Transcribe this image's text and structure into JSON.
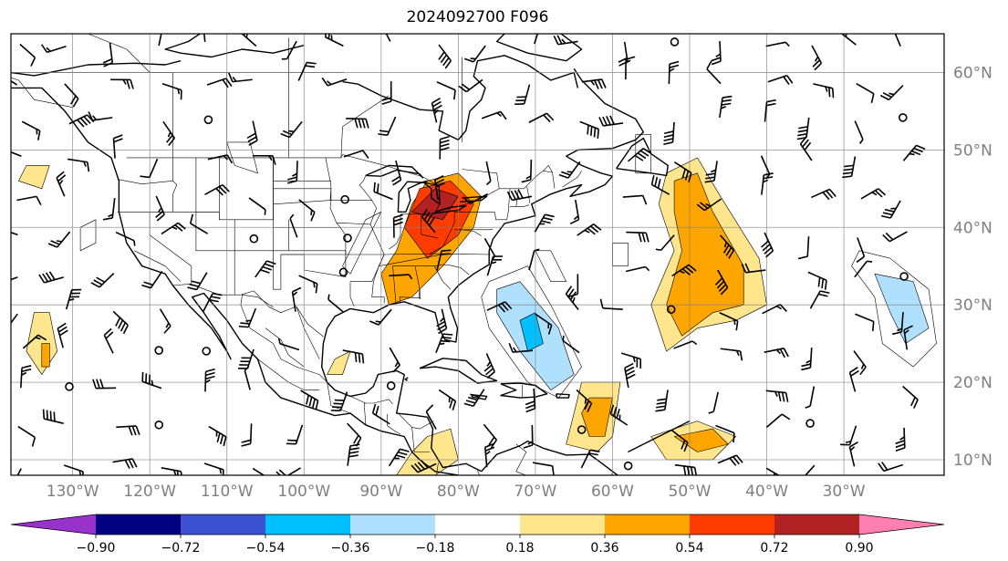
{
  "title": "2024092700 F096",
  "map": {
    "lon_range": [
      -138,
      -17
    ],
    "lat_range": [
      8,
      65
    ],
    "lat_ticks": [
      {
        "lat": 10,
        "label": "10°N"
      },
      {
        "lat": 20,
        "label": "20°N"
      },
      {
        "lat": 30,
        "label": "30°N"
      },
      {
        "lat": 40,
        "label": "40°N"
      },
      {
        "lat": 50,
        "label": "50°N"
      },
      {
        "lat": 60,
        "label": "60°N"
      }
    ],
    "lon_ticks": [
      {
        "lon": -130,
        "label": "130°W"
      },
      {
        "lon": -120,
        "label": "120°W"
      },
      {
        "lon": -110,
        "label": "110°W"
      },
      {
        "lon": -100,
        "label": "100°W"
      },
      {
        "lon": -90,
        "label": "90°W"
      },
      {
        "lon": -80,
        "label": "80°W"
      },
      {
        "lon": -70,
        "label": "70°W"
      },
      {
        "lon": -60,
        "label": "60°W"
      },
      {
        "lon": -50,
        "label": "50°W"
      },
      {
        "lon": -40,
        "label": "40°W"
      },
      {
        "lon": -30,
        "label": "30°W"
      }
    ],
    "grid": true,
    "field_regions": [
      {
        "level": 0.36,
        "points": [
          [
            -88,
            37
          ],
          [
            -86,
            43
          ],
          [
            -84,
            46
          ],
          [
            -80,
            47
          ],
          [
            -77,
            44
          ],
          [
            -78,
            40
          ],
          [
            -82,
            35
          ],
          [
            -86,
            31
          ],
          [
            -89,
            30
          ],
          [
            -90,
            34
          ]
        ]
      },
      {
        "level": 0.54,
        "points": [
          [
            -87,
            40
          ],
          [
            -85,
            45
          ],
          [
            -81,
            46
          ],
          [
            -78,
            43
          ],
          [
            -80,
            39
          ],
          [
            -84,
            36
          ]
        ]
      },
      {
        "level": 0.72,
        "points": [
          [
            -86,
            42
          ],
          [
            -83,
            45
          ],
          [
            -80,
            44
          ],
          [
            -82,
            41
          ]
        ]
      },
      {
        "level": -0.18,
        "points": [
          [
            -76,
            33
          ],
          [
            -71,
            35
          ],
          [
            -68,
            30
          ],
          [
            -64,
            22
          ],
          [
            -67,
            18
          ],
          [
            -71,
            20
          ],
          [
            -76,
            27
          ],
          [
            -77,
            31
          ]
        ]
      },
      {
        "level": -0.36,
        "points": [
          [
            -75,
            32
          ],
          [
            -72,
            33
          ],
          [
            -67,
            27
          ],
          [
            -65,
            21
          ],
          [
            -68,
            19
          ],
          [
            -72,
            24
          ],
          [
            -75,
            29
          ]
        ]
      },
      {
        "level": -0.54,
        "points": [
          [
            -72,
            28
          ],
          [
            -70,
            29
          ],
          [
            -69,
            25
          ],
          [
            -71,
            24
          ]
        ]
      },
      {
        "level": 0.18,
        "points": [
          [
            -53,
            47
          ],
          [
            -49,
            49
          ],
          [
            -46,
            44
          ],
          [
            -41,
            36
          ],
          [
            -40,
            30
          ],
          [
            -44,
            28
          ],
          [
            -49,
            27
          ],
          [
            -53,
            24
          ],
          [
            -55,
            30
          ],
          [
            -52,
            37
          ],
          [
            -54,
            43
          ]
        ]
      },
      {
        "level": 0.36,
        "points": [
          [
            -52,
            46
          ],
          [
            -49,
            47
          ],
          [
            -47,
            42
          ],
          [
            -43,
            35
          ],
          [
            -43,
            30
          ],
          [
            -47,
            29
          ],
          [
            -51,
            26
          ],
          [
            -53,
            30
          ],
          [
            -51,
            37
          ],
          [
            -52,
            42
          ]
        ]
      },
      {
        "level": -0.18,
        "points": [
          [
            -28,
            37
          ],
          [
            -24,
            36
          ],
          [
            -19,
            32
          ],
          [
            -18,
            25
          ],
          [
            -21,
            22
          ],
          [
            -25,
            25
          ],
          [
            -26,
            31
          ],
          [
            -29,
            35
          ]
        ]
      },
      {
        "level": -0.36,
        "points": [
          [
            -26,
            34
          ],
          [
            -21,
            33
          ],
          [
            -19,
            27
          ],
          [
            -22,
            25
          ],
          [
            -24,
            29
          ]
        ]
      },
      {
        "level": 0.18,
        "points": [
          [
            -64,
            20
          ],
          [
            -59,
            20
          ],
          [
            -60,
            13
          ],
          [
            -62,
            11
          ],
          [
            -66,
            12
          ],
          [
            -65,
            16
          ]
        ]
      },
      {
        "level": 0.36,
        "points": [
          [
            -63,
            18
          ],
          [
            -60,
            18
          ],
          [
            -61,
            13
          ],
          [
            -63,
            13
          ],
          [
            -64,
            16
          ]
        ]
      },
      {
        "level": 0.18,
        "points": [
          [
            -55,
            13
          ],
          [
            -49,
            15
          ],
          [
            -44,
            13
          ],
          [
            -47,
            10
          ],
          [
            -53,
            10
          ]
        ]
      },
      {
        "level": 0.36,
        "points": [
          [
            -52,
            13
          ],
          [
            -47,
            14
          ],
          [
            -45,
            12
          ],
          [
            -49,
            11
          ]
        ]
      },
      {
        "level": 0.18,
        "points": [
          [
            -135,
            29
          ],
          [
            -133,
            29
          ],
          [
            -132,
            24
          ],
          [
            -134,
            21
          ],
          [
            -136,
            24
          ]
        ]
      },
      {
        "level": 0.36,
        "points": [
          [
            -134,
            25
          ],
          [
            -133,
            25
          ],
          [
            -133,
            22
          ],
          [
            -134,
            22
          ]
        ]
      },
      {
        "level": 0.18,
        "points": [
          [
            -84,
            13
          ],
          [
            -81,
            14
          ],
          [
            -80,
            10
          ],
          [
            -83,
            8
          ],
          [
            -88,
            8
          ],
          [
            -86,
            11
          ]
        ]
      },
      {
        "level": -0.18,
        "points": [
          [
            -92,
            41
          ],
          [
            -90,
            42
          ],
          [
            -94,
            34
          ],
          [
            -95,
            35
          ]
        ]
      },
      {
        "level": -0.18,
        "points": [
          [
            -110,
            51
          ],
          [
            -107,
            51
          ],
          [
            -106,
            47
          ],
          [
            -109,
            48
          ]
        ]
      },
      {
        "level": -0.18,
        "points": [
          [
            -129,
            40
          ],
          [
            -127,
            41
          ],
          [
            -127,
            38
          ],
          [
            -129,
            37
          ]
        ]
      },
      {
        "level": -0.18,
        "points": [
          [
            -70,
            37
          ],
          [
            -68,
            37
          ],
          [
            -66,
            33
          ],
          [
            -68,
            33
          ]
        ]
      },
      {
        "level": -0.18,
        "points": [
          [
            -60,
            38
          ],
          [
            -58,
            38
          ],
          [
            -58,
            35
          ],
          [
            -60,
            35
          ]
        ]
      },
      {
        "level": -0.18,
        "points": [
          [
            -57,
            52
          ],
          [
            -55,
            52
          ],
          [
            -55,
            47
          ],
          [
            -57,
            47
          ]
        ]
      },
      {
        "level": 0.18,
        "points": [
          [
            -136,
            48
          ],
          [
            -133,
            48
          ],
          [
            -134,
            45
          ],
          [
            -137,
            46
          ]
        ]
      },
      {
        "level": 0.18,
        "points": [
          [
            -96,
            23
          ],
          [
            -94,
            24
          ],
          [
            -95,
            21
          ],
          [
            -97,
            21
          ]
        ]
      }
    ]
  },
  "colorbar": {
    "colors": [
      "#9932cc",
      "#000080",
      "#3c50d2",
      "#00bfff",
      "#afe1ff",
      "#ffffff",
      "#ffe68c",
      "#ffa500",
      "#ff3c00",
      "#b22222",
      "#ff80b0"
    ],
    "labels": [
      "−0.90",
      "−0.72",
      "−0.54",
      "−0.36",
      "−0.18",
      "0.18",
      "0.36",
      "0.54",
      "0.72",
      "0.90"
    ],
    "levels": [
      -0.9,
      -0.72,
      -0.54,
      -0.36,
      -0.18,
      0.18,
      0.36,
      0.54,
      0.72,
      0.9
    ]
  }
}
